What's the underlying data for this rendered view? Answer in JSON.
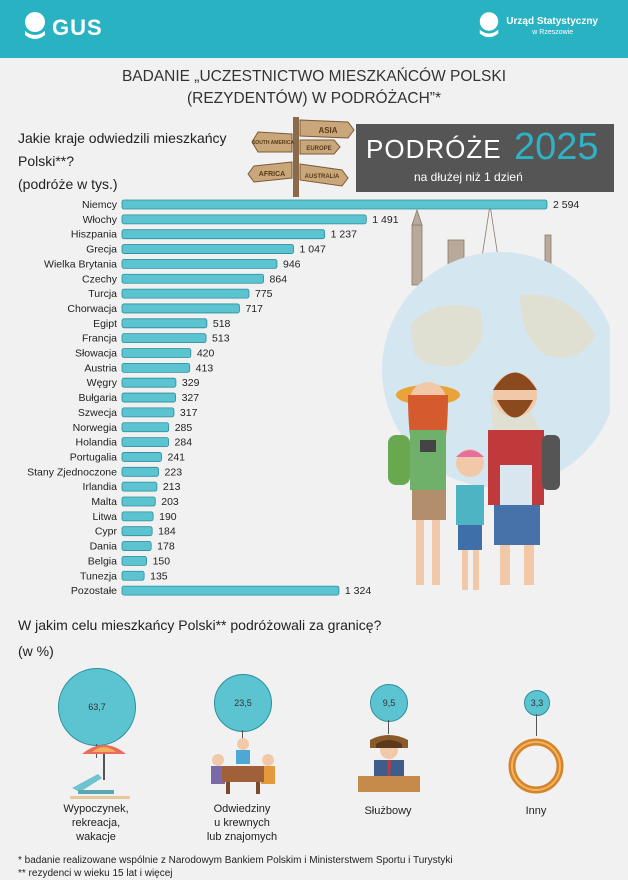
{
  "header": {
    "logo_left": "GUS",
    "logo_right_line1": "Urząd Statystyczny",
    "logo_right_line2": "w Rzeszowie"
  },
  "title": {
    "line1": "BADANIE „UCZESTNICTWO MIESZKAŃCÓW POLSKI",
    "line2": "(REZYDENTÓW) W PODRÓŻACH”*"
  },
  "question1": {
    "line1": "Jakie kraje odwiedzili mieszkańcy",
    "line2": "Polski**?",
    "line3": "(podróże w tys.)"
  },
  "signpost": {
    "asia": "ASIA",
    "america": "SOUTH AMERICA",
    "europe": "EUROPE",
    "africa": "AFRICA",
    "australia": "AUSTRALIA"
  },
  "banner": {
    "word": "PODRÓŻE",
    "year": "2025",
    "subtitle": "na dłużej niż 1 dzień"
  },
  "colors": {
    "accent": "#29b2c2",
    "bar": "#5cc4d0",
    "bar_border": "#2a8e9b",
    "banner_bg": "#555555",
    "year": "#2db3c6"
  },
  "chart_data": {
    "type": "bar",
    "orientation": "horizontal",
    "unit": "tys.",
    "categories": [
      "Niemcy",
      "Włochy",
      "Hiszpania",
      "Grecja",
      "Wielka Brytania",
      "Czechy",
      "Turcja",
      "Chorwacja",
      "Egipt",
      "Francja",
      "Słowacja",
      "Austria",
      "Węgry",
      "Bułgaria",
      "Szwecja",
      "Norwegia",
      "Holandia",
      "Portugalia",
      "Stany Zjednoczone",
      "Irlandia",
      "Malta",
      "Litwa",
      "Cypr",
      "Dania",
      "Belgia",
      "Tunezja",
      "Pozostałe"
    ],
    "values": [
      2594,
      1491,
      1237,
      1047,
      946,
      864,
      775,
      717,
      518,
      513,
      420,
      413,
      329,
      327,
      317,
      285,
      284,
      241,
      223,
      213,
      203,
      190,
      184,
      178,
      150,
      135,
      1324
    ],
    "labels": [
      "2 594",
      "1 491",
      "1 237",
      "1 047",
      "946",
      "864",
      "775",
      "717",
      "518",
      "513",
      "420",
      "413",
      "329",
      "327",
      "317",
      "285",
      "284",
      "241",
      "223",
      "213",
      "203",
      "190",
      "184",
      "178",
      "150",
      "135",
      "1 324"
    ]
  },
  "question2": {
    "line1": "W jakim celu mieszkańcy Polski** podróżowali za granicę?",
    "line2": "(w %)"
  },
  "purposes": [
    {
      "value": "63,7",
      "label1": "Wypoczynek,",
      "label2": "rekreacja,",
      "label3": "wakacje",
      "icon": "beach-chair-umbrella-icon"
    },
    {
      "value": "23,5",
      "label1": "Odwiedziny",
      "label2": "u krewnych",
      "label3": "lub znajomych",
      "icon": "family-table-icon"
    },
    {
      "value": "9,5",
      "label1": "Służbowy",
      "label2": "",
      "label3": "",
      "icon": "businessman-icon"
    },
    {
      "value": "3,3",
      "label1": "Inny",
      "label2": "",
      "label3": "",
      "icon": "ring-icon"
    }
  ],
  "footnotes": {
    "f1": "* badanie realizowane wspólnie z Narodowym Bankiem Polskim i Ministerstwem Sportu i Turystyki",
    "f2": "** rezydenci w wieku 15 lat i więcej"
  }
}
